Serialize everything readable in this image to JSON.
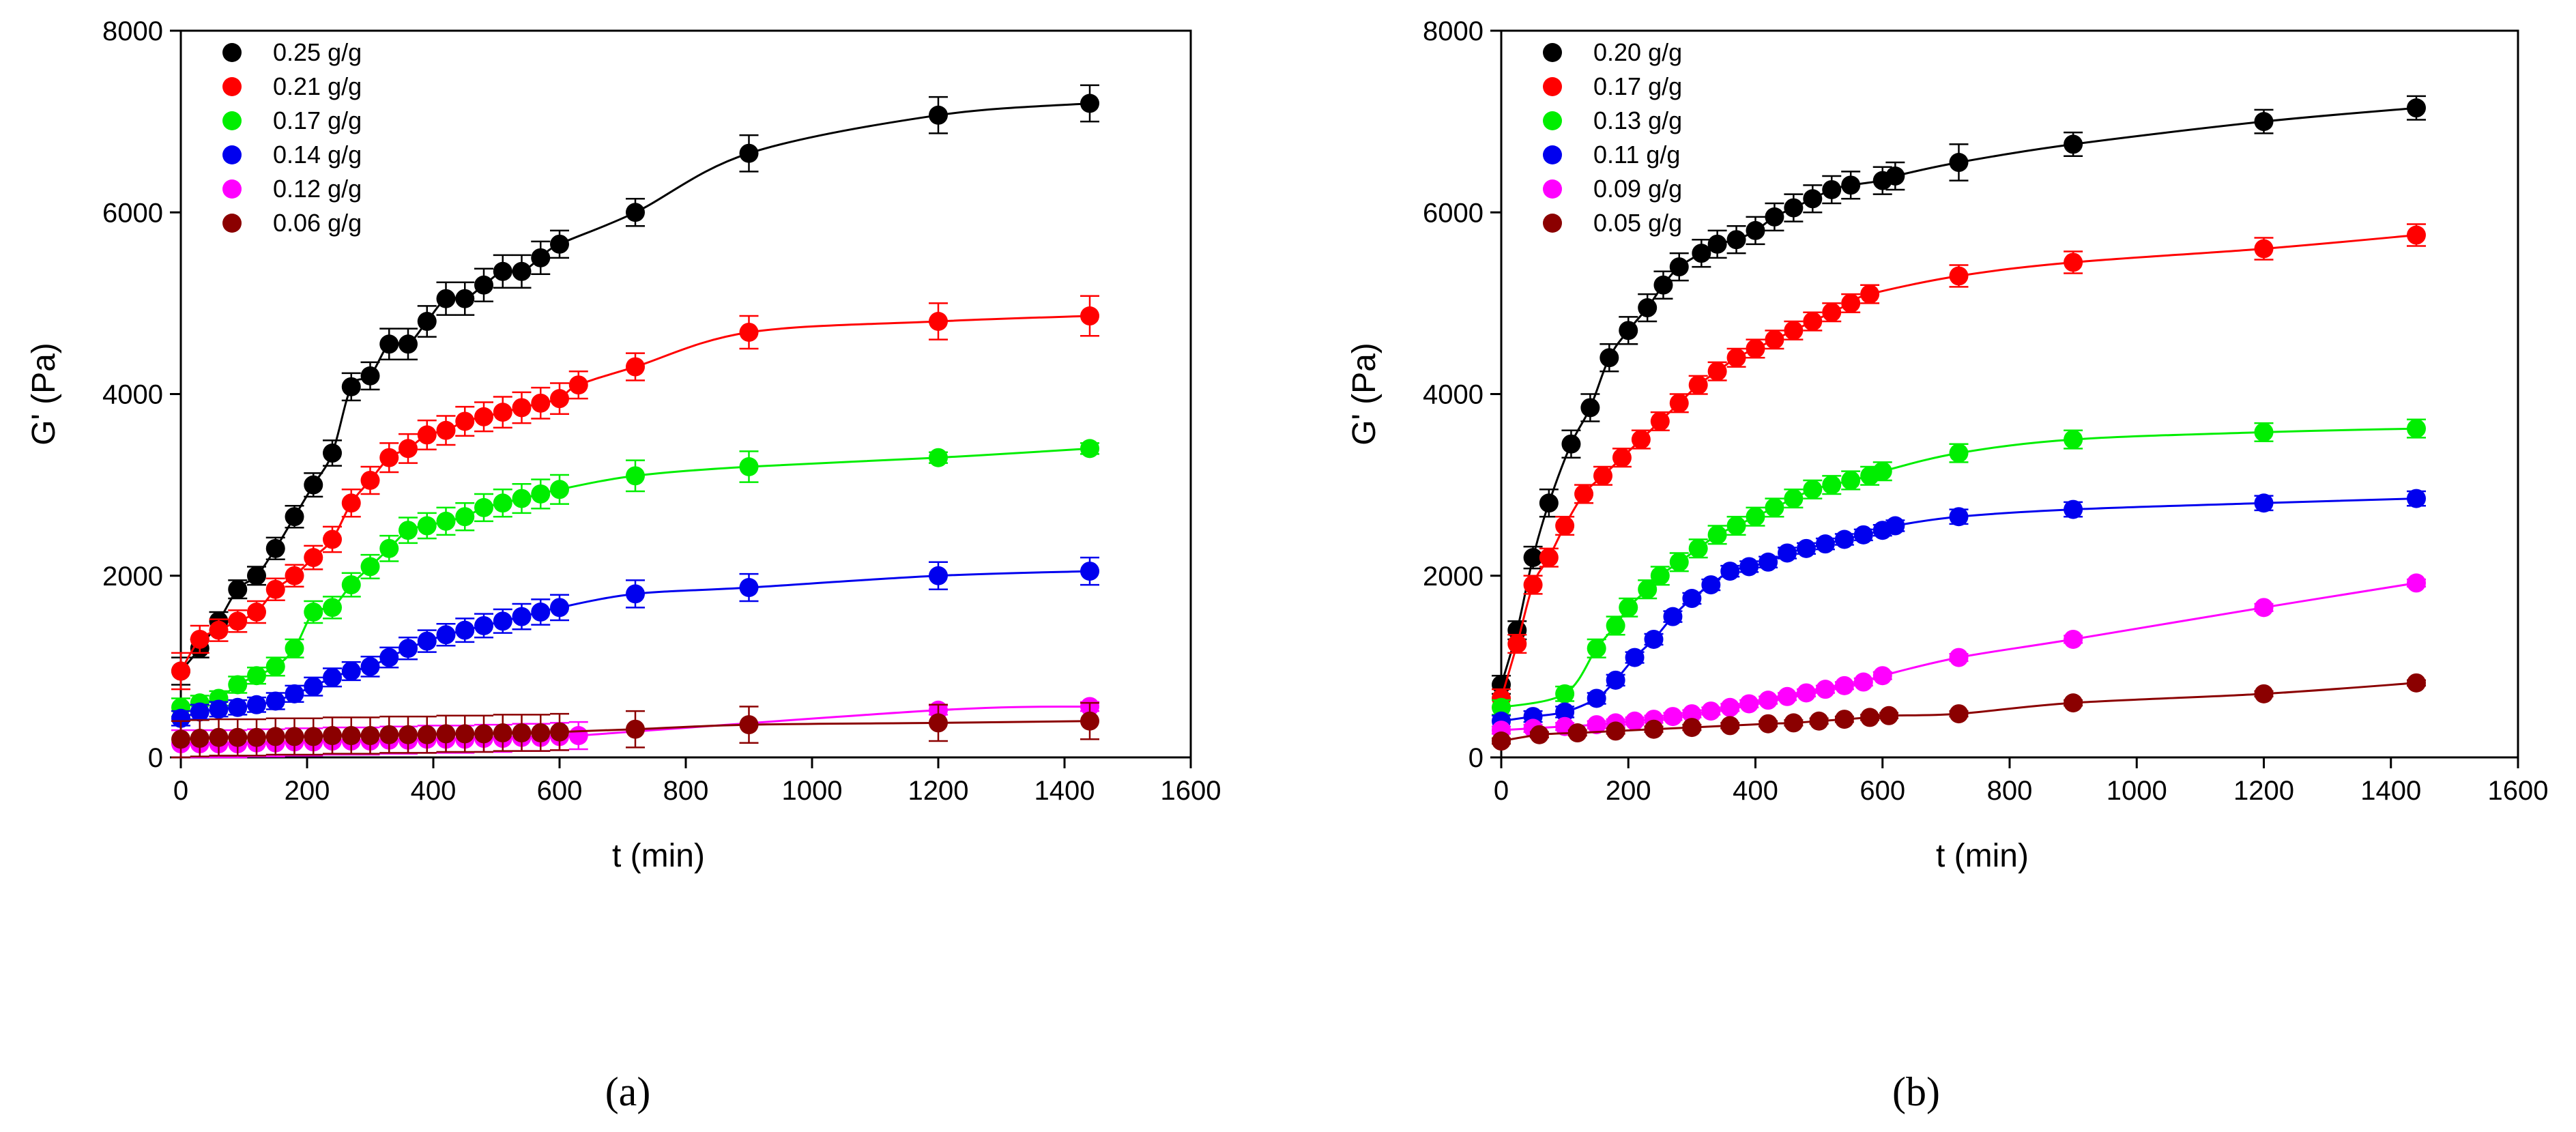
{
  "chart_data": [
    {
      "type": "scatter",
      "caption": "(a)",
      "xlabel": "t (min)",
      "ylabel": "G' (Pa)",
      "xlim": [
        0,
        1600
      ],
      "ylim": [
        0,
        8000
      ],
      "xticks": [
        0,
        200,
        400,
        600,
        800,
        1000,
        1200,
        1400,
        1600
      ],
      "yticks": [
        0,
        2000,
        4000,
        6000,
        8000
      ],
      "grid": false,
      "legend": "top-left",
      "series": [
        {
          "name": "0.25 g/g",
          "color": "#000000",
          "x": [
            0,
            30,
            60,
            90,
            120,
            150,
            180,
            210,
            240,
            270,
            300,
            330,
            360,
            390,
            420,
            450,
            480,
            510,
            540,
            570,
            600,
            720,
            900,
            1200,
            1440
          ],
          "y": [
            950,
            1200,
            1500,
            1850,
            2000,
            2300,
            2650,
            3000,
            3350,
            4080,
            4200,
            4550,
            4550,
            4800,
            5050,
            5050,
            5200,
            5350,
            5350,
            5500,
            5650,
            6000,
            6650,
            7070,
            7200
          ],
          "err": [
            150,
            100,
            100,
            100,
            100,
            120,
            120,
            130,
            140,
            150,
            150,
            170,
            170,
            170,
            180,
            180,
            180,
            180,
            180,
            180,
            150,
            150,
            200,
            200,
            200
          ]
        },
        {
          "name": "0.21 g/g",
          "color": "#ff0000",
          "x": [
            0,
            30,
            60,
            90,
            120,
            150,
            180,
            210,
            240,
            270,
            300,
            330,
            360,
            390,
            420,
            450,
            480,
            510,
            540,
            570,
            600,
            630,
            720,
            900,
            1200,
            1440
          ],
          "y": [
            950,
            1300,
            1400,
            1500,
            1600,
            1850,
            2000,
            2200,
            2400,
            2800,
            3050,
            3300,
            3400,
            3550,
            3600,
            3700,
            3750,
            3800,
            3850,
            3900,
            3950,
            4100,
            4300,
            4680,
            4800,
            4860
          ],
          "err": [
            200,
            150,
            120,
            120,
            120,
            120,
            120,
            130,
            140,
            150,
            150,
            160,
            160,
            160,
            160,
            160,
            160,
            170,
            170,
            170,
            170,
            150,
            150,
            180,
            200,
            220
          ]
        },
        {
          "name": "0.17 g/g",
          "color": "#00ee00",
          "x": [
            0,
            30,
            60,
            90,
            120,
            150,
            180,
            210,
            240,
            270,
            300,
            330,
            360,
            390,
            420,
            450,
            480,
            510,
            540,
            570,
            600,
            720,
            900,
            1200,
            1440
          ],
          "y": [
            550,
            600,
            650,
            800,
            900,
            1000,
            1200,
            1600,
            1650,
            1900,
            2100,
            2300,
            2500,
            2550,
            2600,
            2650,
            2750,
            2800,
            2850,
            2900,
            2950,
            3100,
            3200,
            3300,
            3400
          ],
          "err": [
            100,
            80,
            80,
            90,
            90,
            100,
            100,
            120,
            120,
            130,
            130,
            140,
            140,
            140,
            150,
            150,
            150,
            150,
            160,
            160,
            160,
            170,
            170,
            60,
            60
          ]
        },
        {
          "name": "0.14 g/g",
          "color": "#0000ee",
          "x": [
            0,
            30,
            60,
            90,
            120,
            150,
            180,
            210,
            240,
            270,
            300,
            330,
            360,
            390,
            420,
            450,
            480,
            510,
            540,
            570,
            600,
            720,
            900,
            1200,
            1440
          ],
          "y": [
            430,
            500,
            530,
            550,
            580,
            620,
            700,
            780,
            880,
            950,
            1000,
            1100,
            1200,
            1280,
            1350,
            1400,
            1450,
            1500,
            1550,
            1600,
            1650,
            1800,
            1870,
            2000,
            2050
          ],
          "err": [
            80,
            80,
            80,
            80,
            80,
            90,
            90,
            100,
            100,
            100,
            110,
            110,
            120,
            120,
            120,
            130,
            130,
            130,
            140,
            140,
            140,
            150,
            150,
            150,
            150
          ]
        },
        {
          "name": "0.12 g/g",
          "color": "#ff00ff",
          "x": [
            0,
            30,
            60,
            90,
            120,
            150,
            180,
            210,
            240,
            270,
            300,
            330,
            360,
            390,
            420,
            450,
            480,
            510,
            540,
            570,
            600,
            630,
            1200,
            1440
          ],
          "y": [
            150,
            150,
            150,
            150,
            160,
            160,
            170,
            170,
            180,
            180,
            180,
            190,
            190,
            200,
            200,
            200,
            210,
            210,
            220,
            220,
            230,
            240,
            520,
            560
          ],
          "err": [
            150,
            150,
            150,
            150,
            150,
            150,
            150,
            150,
            150,
            150,
            150,
            150,
            150,
            150,
            150,
            150,
            150,
            150,
            150,
            150,
            150,
            150,
            50,
            50
          ]
        },
        {
          "name": "0.06 g/g",
          "color": "#8b0000",
          "x": [
            0,
            30,
            60,
            90,
            120,
            150,
            180,
            210,
            240,
            270,
            300,
            330,
            360,
            390,
            420,
            450,
            480,
            510,
            540,
            570,
            600,
            720,
            900,
            1200,
            1440
          ],
          "y": [
            200,
            210,
            220,
            220,
            220,
            230,
            230,
            230,
            240,
            240,
            240,
            250,
            250,
            250,
            260,
            260,
            260,
            270,
            270,
            270,
            280,
            310,
            360,
            380,
            400
          ],
          "err": [
            200,
            200,
            200,
            200,
            200,
            200,
            200,
            200,
            200,
            200,
            200,
            200,
            200,
            200,
            200,
            200,
            200,
            200,
            200,
            200,
            200,
            200,
            200,
            200,
            200
          ]
        }
      ]
    },
    {
      "type": "scatter",
      "caption": "(b)",
      "xlabel": "t (min)",
      "ylabel": "G' (Pa)",
      "xlim": [
        0,
        1600
      ],
      "ylim": [
        0,
        8000
      ],
      "xticks": [
        0,
        200,
        400,
        600,
        800,
        1000,
        1200,
        1400,
        1600
      ],
      "yticks": [
        0,
        2000,
        4000,
        6000,
        8000
      ],
      "grid": false,
      "legend": "top-left",
      "series": [
        {
          "name": "0.20 g/g",
          "color": "#000000",
          "x": [
            0,
            25,
            50,
            75,
            110,
            140,
            170,
            200,
            230,
            255,
            280,
            315,
            340,
            370,
            400,
            430,
            460,
            490,
            520,
            550,
            600,
            620,
            720,
            900,
            1200,
            1440
          ],
          "y": [
            800,
            1400,
            2200,
            2800,
            3450,
            3850,
            4400,
            4700,
            4950,
            5200,
            5400,
            5550,
            5650,
            5700,
            5800,
            5950,
            6050,
            6150,
            6250,
            6300,
            6350,
            6400,
            6550,
            6750,
            7000,
            7150
          ],
          "err": [
            100,
            100,
            120,
            150,
            150,
            150,
            150,
            150,
            150,
            150,
            150,
            150,
            150,
            150,
            150,
            150,
            150,
            150,
            150,
            150,
            150,
            150,
            200,
            130,
            130,
            130
          ]
        },
        {
          "name": "0.17 g/g",
          "color": "#ff0000",
          "x": [
            0,
            25,
            50,
            75,
            100,
            130,
            160,
            190,
            220,
            250,
            280,
            310,
            340,
            370,
            400,
            430,
            460,
            490,
            520,
            550,
            580,
            720,
            900,
            1200,
            1440
          ],
          "y": [
            650,
            1250,
            1900,
            2200,
            2550,
            2900,
            3100,
            3300,
            3500,
            3700,
            3900,
            4100,
            4250,
            4400,
            4500,
            4600,
            4700,
            4800,
            4900,
            5000,
            5100,
            5300,
            5450,
            5600,
            5750
          ],
          "err": [
            100,
            100,
            100,
            100,
            100,
            100,
            100,
            100,
            100,
            100,
            100,
            100,
            100,
            100,
            100,
            100,
            100,
            100,
            100,
            100,
            100,
            120,
            120,
            120,
            120
          ]
        },
        {
          "name": "0.13 g/g",
          "color": "#00ee00",
          "x": [
            0,
            100,
            150,
            180,
            200,
            230,
            250,
            280,
            310,
            340,
            370,
            400,
            430,
            460,
            490,
            520,
            550,
            580,
            600,
            720,
            900,
            1200,
            1440
          ],
          "y": [
            550,
            700,
            1200,
            1450,
            1650,
            1850,
            2000,
            2150,
            2300,
            2450,
            2550,
            2650,
            2750,
            2850,
            2950,
            3000,
            3050,
            3100,
            3150,
            3350,
            3500,
            3580,
            3620
          ],
          "err": [
            80,
            80,
            100,
            100,
            100,
            100,
            100,
            100,
            100,
            100,
            100,
            100,
            100,
            100,
            100,
            100,
            100,
            100,
            100,
            100,
            100,
            100,
            100
          ]
        },
        {
          "name": "0.11 g/g",
          "color": "#0000ee",
          "x": [
            0,
            50,
            100,
            150,
            180,
            210,
            240,
            270,
            300,
            330,
            360,
            390,
            420,
            450,
            480,
            510,
            540,
            570,
            600,
            620,
            720,
            900,
            1200,
            1440
          ],
          "y": [
            400,
            450,
            500,
            650,
            850,
            1100,
            1300,
            1550,
            1750,
            1900,
            2050,
            2100,
            2150,
            2250,
            2300,
            2350,
            2400,
            2450,
            2500,
            2550,
            2650,
            2730,
            2800,
            2850
          ],
          "err": [
            60,
            60,
            60,
            60,
            60,
            60,
            60,
            60,
            60,
            60,
            60,
            60,
            60,
            60,
            60,
            60,
            60,
            60,
            60,
            60,
            80,
            80,
            80,
            80
          ]
        },
        {
          "name": "0.09 g/g",
          "color": "#ff00ff",
          "x": [
            0,
            50,
            100,
            150,
            180,
            210,
            240,
            270,
            300,
            330,
            360,
            390,
            420,
            450,
            480,
            510,
            540,
            570,
            600,
            720,
            900,
            1200,
            1440
          ],
          "y": [
            300,
            320,
            340,
            360,
            380,
            400,
            420,
            450,
            480,
            510,
            550,
            590,
            630,
            670,
            710,
            750,
            790,
            830,
            900,
            1100,
            1300,
            1650,
            1920
          ],
          "err": [
            40,
            40,
            40,
            40,
            40,
            40,
            40,
            40,
            40,
            40,
            40,
            40,
            40,
            40,
            40,
            40,
            40,
            40,
            40,
            40,
            40,
            40,
            40
          ]
        },
        {
          "name": "0.05 g/g",
          "color": "#8b0000",
          "x": [
            0,
            60,
            120,
            180,
            240,
            300,
            360,
            420,
            460,
            500,
            540,
            580,
            610,
            720,
            900,
            1200,
            1440
          ],
          "y": [
            180,
            250,
            270,
            290,
            310,
            330,
            350,
            370,
            380,
            400,
            420,
            440,
            460,
            480,
            600,
            700,
            820
          ],
          "err": [
            30,
            30,
            30,
            30,
            30,
            30,
            30,
            30,
            30,
            30,
            30,
            30,
            30,
            30,
            30,
            30,
            30
          ]
        }
      ]
    }
  ]
}
